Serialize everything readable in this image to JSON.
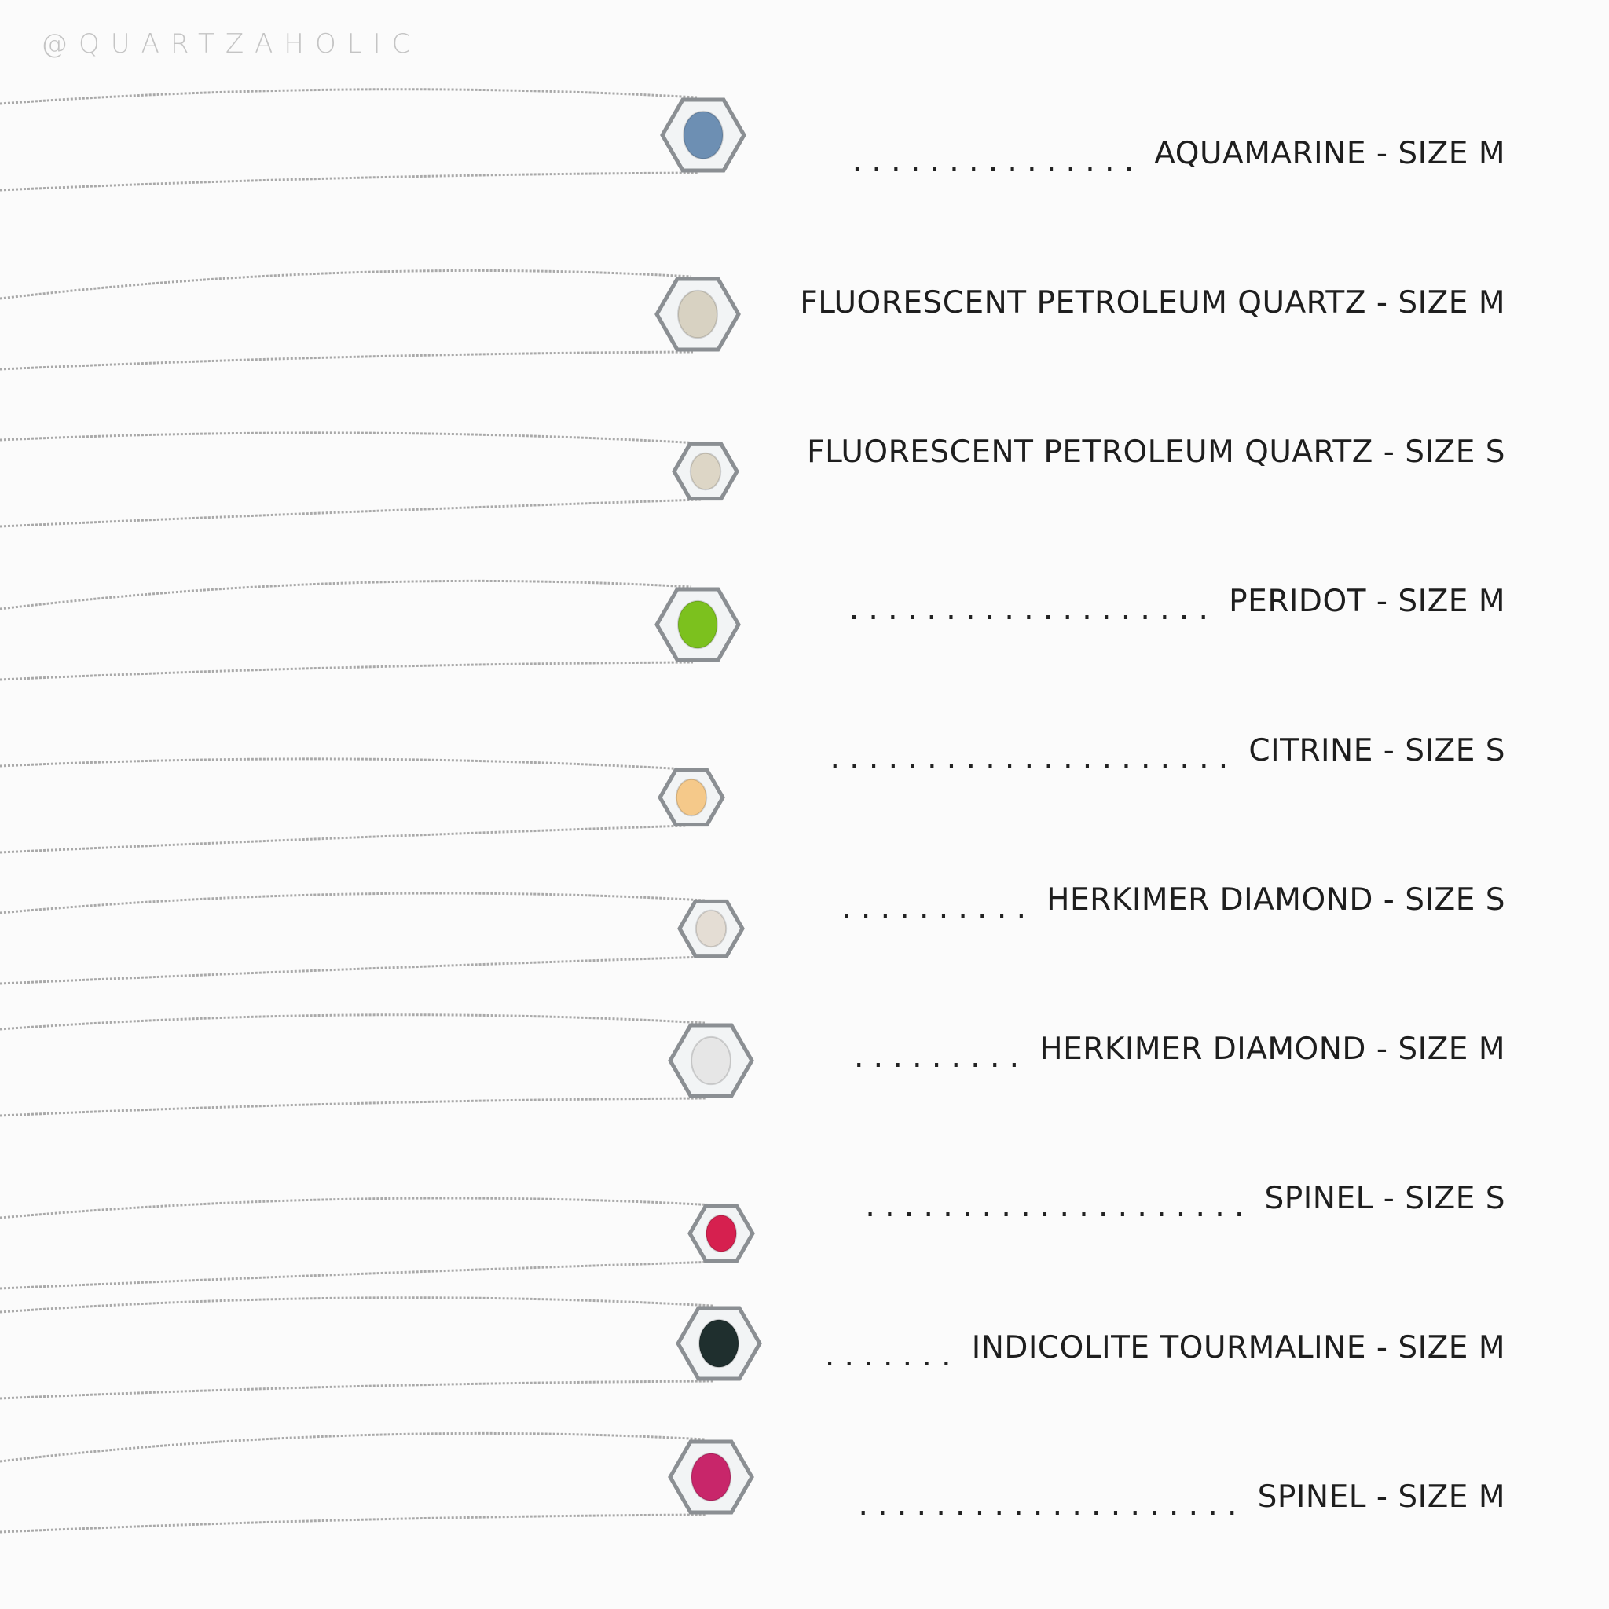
{
  "watermark": "@QUARTZAHOLIC",
  "necklaces": [
    {
      "label": "AQUAMARINE - SIZE M",
      "dots": 15,
      "stone": "#6d8fb3",
      "stone_size": "M"
    },
    {
      "label": "FLUORESCENT PETROLEUM QUARTZ - SIZE M",
      "dots": 0,
      "stone": "#d8d2c2",
      "stone_size": "M"
    },
    {
      "label": "FLUORESCENT PETROLEUM QUARTZ - SIZE S",
      "dots": 0,
      "stone": "#ddd6c6",
      "stone_size": "S"
    },
    {
      "label": "PERIDOT - SIZE M",
      "dots": 19,
      "stone": "#7cc11e",
      "stone_size": "M"
    },
    {
      "label": "CITRINE - SIZE S",
      "dots": 21,
      "stone": "#f5c98a",
      "stone_size": "S"
    },
    {
      "label": "HERKIMER DIAMOND - SIZE S",
      "dots": 10,
      "stone": "#e4ddd4",
      "stone_size": "S"
    },
    {
      "label": "HERKIMER DIAMOND - SIZE M",
      "dots": 9,
      "stone": "#e6e6e6",
      "stone_size": "M"
    },
    {
      "label": "SPINEL - SIZE S",
      "dots": 20,
      "stone": "#d6204f",
      "stone_size": "S"
    },
    {
      "label": "INDICOLITE TOURMALINE - SIZE M",
      "dots": 7,
      "stone": "#1f2f2e",
      "stone_size": "M"
    },
    {
      "label": "SPINEL - SIZE M",
      "dots": 20,
      "stone": "#c8266a",
      "stone_size": "M"
    }
  ]
}
